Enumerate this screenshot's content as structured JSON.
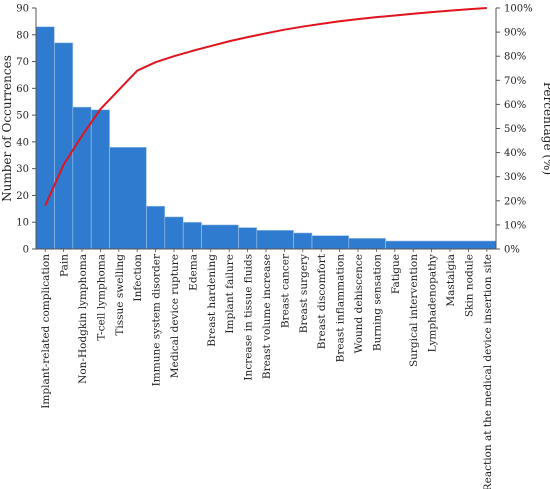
{
  "chart_data": {
    "type": "bar",
    "title": "",
    "xlabel": "",
    "ylabel": "Number of Occurrences",
    "y2label": "Percentage (%)",
    "ylim": [
      0,
      90
    ],
    "y_ticks": [
      0,
      10,
      20,
      30,
      40,
      50,
      60,
      70,
      80,
      90
    ],
    "y2lim": [
      0,
      100
    ],
    "y2_ticks": [
      "0%",
      "10%",
      "20%",
      "30%",
      "40%",
      "50%",
      "60%",
      "70%",
      "80%",
      "90%",
      "100%"
    ],
    "grid": false,
    "legend": "none",
    "colors": {
      "bar": "#2e7bcf",
      "bar_edge": "#a9c9ec",
      "line": "#e0141e",
      "axis": "#555555"
    },
    "categories": [
      "Implant-related complication",
      "Pain",
      "Non-Hodgkin lymphoma",
      "T-cell lymphoma",
      "Tissue swelling",
      "Infection",
      "Immune system disorder",
      "Medical device rupture",
      "Edema",
      "Breast hardening",
      "Implant failure",
      "Increase in tissue fluids",
      "Breast volume increase",
      "Breast cancer",
      "Breast surgery",
      "Breast discomfort",
      "Breast inflammation",
      "Wound dehiscence",
      "Burning sensation",
      "Fatigue",
      "Surgical intervention",
      "Lymphadenopathy",
      "Mastalgia",
      "Skin nodule",
      "Reaction at the medical device insertion site"
    ],
    "bar_groups": [
      {
        "value": 83,
        "count": 1
      },
      {
        "value": 77,
        "count": 1
      },
      {
        "value": 53,
        "count": 1
      },
      {
        "value": 52,
        "count": 1
      },
      {
        "value": 38,
        "count": 2
      },
      {
        "value": 16,
        "count": 1
      },
      {
        "value": 12,
        "count": 1
      },
      {
        "value": 10,
        "count": 1
      },
      {
        "value": 9,
        "count": 2
      },
      {
        "value": 8,
        "count": 1
      },
      {
        "value": 7,
        "count": 2
      },
      {
        "value": 6,
        "count": 1
      },
      {
        "value": 5,
        "count": 2
      },
      {
        "value": 4,
        "count": 2
      },
      {
        "value": 3,
        "count": 6
      }
    ],
    "line_values": [
      18,
      35,
      47,
      58,
      66,
      74,
      77.5,
      80,
      82.2,
      84.2,
      86.2,
      87.9,
      89.5,
      91,
      92.3,
      93.4,
      94.5,
      95.4,
      96.2,
      96.9,
      97.6,
      98.3,
      98.9,
      99.5,
      100
    ]
  }
}
